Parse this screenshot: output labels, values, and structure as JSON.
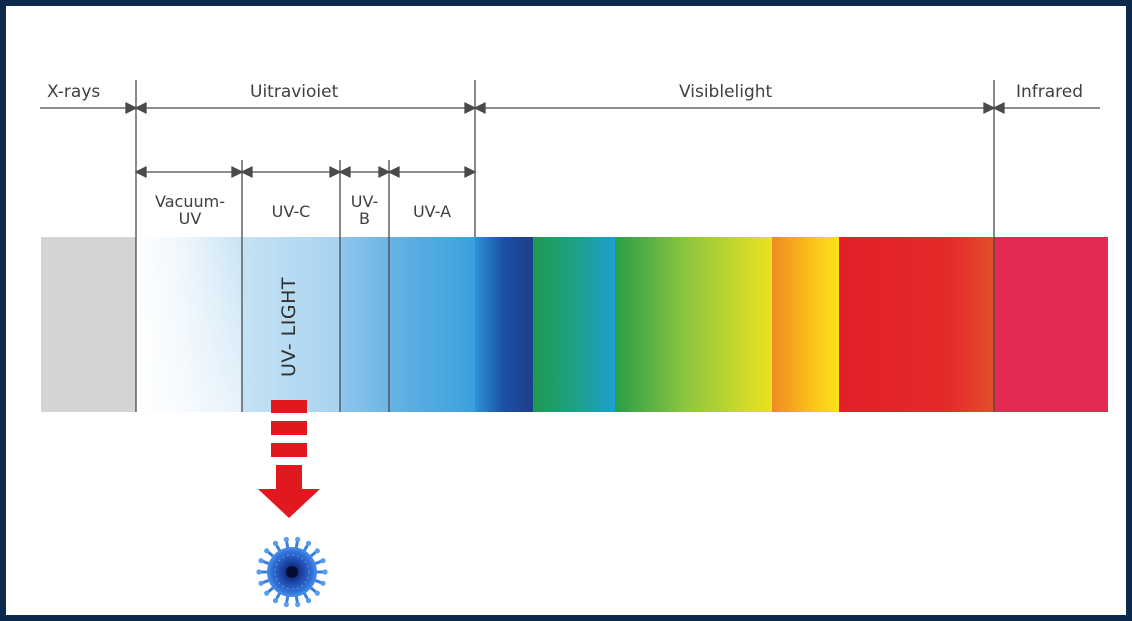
{
  "diagram": {
    "bands": {
      "xrays": "X-rays",
      "ultraviolet": "Uitravioiet",
      "visible": "Visiblelight",
      "infrared": "Infrared"
    },
    "uv_subbands": {
      "vacuum_uv": "Vacuum-\nUV",
      "uv_c": "UV-C",
      "uv_b": "UV-\nB",
      "uv_a": "UV-A"
    },
    "uv_light_label": "UV- LIGHT",
    "icons": {
      "arrow": "red-down-arrow-icon",
      "virus": "virus-icon"
    },
    "colors": {
      "arrow_red": "#e1191e",
      "virus_blue": "#1a4fb8",
      "xray_gray": "#d4d4d4",
      "infrared_pink": "#e42a52"
    }
  }
}
